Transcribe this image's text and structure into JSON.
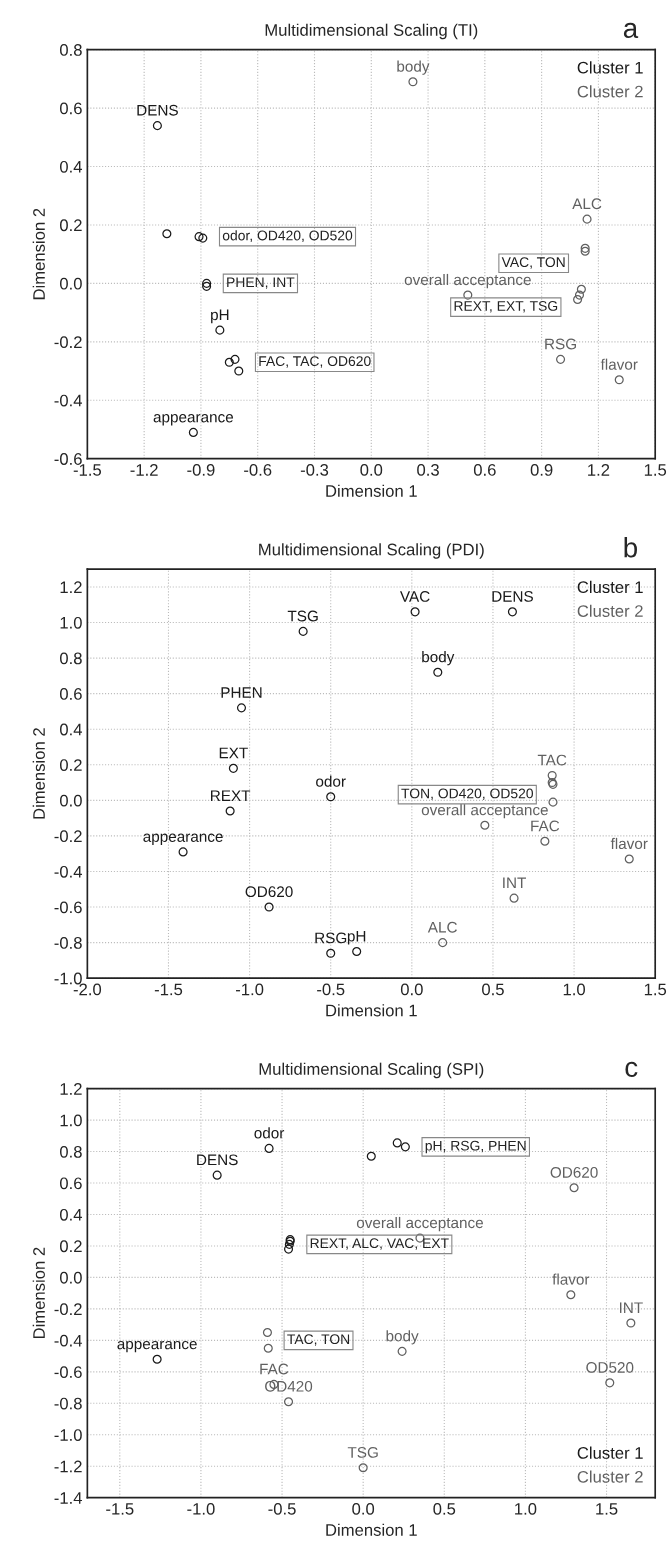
{
  "chart_data": [
    {
      "type": "scatter",
      "title": "Multidimensional Scaling (TI)",
      "xlabel": "Dimension 1",
      "ylabel": "Dimension 2",
      "xlim": [
        -1.5,
        1.5
      ],
      "ylim": [
        -0.6,
        0.8
      ],
      "xticks": [
        -1.5,
        -1.2,
        -0.9,
        -0.6,
        -0.3,
        {
          "value": 0,
          "label": "0.0"
        },
        0.3,
        0.6,
        0.9,
        1.2,
        1.5
      ],
      "yticks": [
        -0.6,
        -0.4,
        -0.2,
        {
          "value": 0,
          "label": "0.0"
        },
        0.2,
        0.4,
        0.6,
        0.8
      ],
      "grid": true,
      "marker": "circle",
      "legend": "top right",
      "series": [
        {
          "name": "Cluster 1",
          "color": "#1a1a1a",
          "x": [
            -1.13,
            -1.08,
            -0.91,
            -0.89,
            -0.87,
            -0.87,
            -0.8,
            -0.75,
            -0.72,
            -0.7,
            -0.94
          ],
          "values": [
            0.54,
            0.17,
            0.16,
            0.155,
            0.0,
            -0.01,
            -0.16,
            -0.27,
            -0.26,
            -0.3,
            -0.51
          ],
          "value_labels": [
            "DENS",
            null,
            null,
            null,
            null,
            null,
            "pH",
            null,
            null,
            null,
            "appearance"
          ]
        },
        {
          "name": "Cluster 2",
          "color": "#606060",
          "x": [
            0.22,
            1.14,
            1.13,
            1.13,
            1.09,
            1.1,
            1.11,
            0.51,
            1.0,
            1.31
          ],
          "values": [
            0.69,
            0.22,
            0.11,
            0.12,
            -0.055,
            -0.04,
            -0.02,
            -0.04,
            -0.26,
            -0.33
          ],
          "value_labels": [
            "body",
            "ALC",
            null,
            null,
            null,
            null,
            null,
            "overall acceptance",
            "RSG",
            "flavor"
          ]
        }
      ],
      "annotations": [
        "a",
        {
          "text": "odor, OD420, OD520",
          "x": -0.89,
          "y": 0.16
        },
        {
          "text": "PHEN, INT",
          "x": -0.87,
          "y": 0.0
        },
        {
          "text": "FAC, TAC, OD620",
          "x": -0.7,
          "y": -0.27
        },
        {
          "text": "VAC, TON",
          "x": 1.13,
          "y": 0.11
        },
        {
          "text": "REXT, EXT, TSG",
          "x": 1.09,
          "y": -0.04
        }
      ]
    },
    {
      "type": "scatter",
      "title": "Multidimensional Scaling (PDI)",
      "xlabel": "Dimension 1",
      "ylabel": "Dimension 2",
      "xlim": [
        -2.0,
        1.5
      ],
      "ylim": [
        -1.0,
        1.3
      ],
      "xticks": [
        {
          "value": -2,
          "label": "-2.0"
        },
        -1.5,
        {
          "value": -1,
          "label": "-1.0"
        },
        -0.5,
        {
          "value": 0,
          "label": "0.0"
        },
        0.5,
        {
          "value": 1,
          "label": "1.0"
        },
        1.5
      ],
      "yticks": [
        {
          "value": -1,
          "label": "-1.0"
        },
        -0.8,
        -0.6,
        -0.4,
        -0.2,
        {
          "value": 0,
          "label": "0.0"
        },
        0.2,
        0.4,
        0.6,
        0.8,
        {
          "value": 1,
          "label": "1.0"
        },
        1.2
      ],
      "grid": true,
      "marker": "circle",
      "legend": "top right",
      "series": [
        {
          "name": "Cluster 1",
          "color": "#1a1a1a",
          "x": [
            -0.67,
            -1.05,
            -1.1,
            -1.12,
            -1.41,
            -0.5,
            -0.88,
            -0.5,
            -0.34,
            0.02,
            0.62,
            0.16
          ],
          "values": [
            0.95,
            0.52,
            0.18,
            -0.06,
            -0.29,
            0.02,
            -0.6,
            -0.86,
            -0.85,
            1.06,
            1.06,
            0.72
          ],
          "value_labels": [
            "TSG",
            "PHEN",
            "EXT",
            "REXT",
            "appearance",
            "odor",
            "OD620",
            "RSG",
            "pH",
            "VAC",
            "DENS",
            "body"
          ]
        },
        {
          "name": "Cluster 2",
          "color": "#606060",
          "x": [
            0.865,
            0.87,
            0.865,
            0.87,
            0.45,
            0.82,
            1.34,
            0.63,
            0.19
          ],
          "values": [
            0.14,
            0.09,
            0.1,
            -0.01,
            -0.14,
            -0.23,
            -0.33,
            -0.55,
            -0.8
          ],
          "value_labels": [
            "TAC",
            null,
            null,
            null,
            "overall acceptance",
            "FAC",
            "flavor",
            "INT",
            "ALC"
          ]
        }
      ],
      "annotations": [
        "b",
        {
          "text": "TON, OD420, OD520",
          "x": 0.87,
          "y": 0.1
        }
      ]
    },
    {
      "type": "scatter",
      "title": "Multidimensional Scaling (SPI)",
      "xlabel": "Dimension 1",
      "ylabel": "Dimension 2",
      "xlim": [
        -1.7,
        1.8
      ],
      "ylim": [
        -1.4,
        1.2
      ],
      "xticks": [
        -1.5,
        {
          "value": -1,
          "label": "-1.0"
        },
        -0.5,
        {
          "value": 0,
          "label": "0.0"
        },
        0.5,
        {
          "value": 1,
          "label": "1.0"
        },
        1.5
      ],
      "yticks": [
        -1.4,
        -1.2,
        {
          "value": -1,
          "label": "-1.0"
        },
        -0.8,
        -0.6,
        -0.4,
        -0.2,
        {
          "value": 0,
          "label": "0.0"
        },
        0.2,
        0.4,
        0.6,
        0.8,
        {
          "value": 1,
          "label": "1.0"
        },
        1.2
      ],
      "grid": true,
      "marker": "circle",
      "legend": "bottom right",
      "series": [
        {
          "name": "Cluster 1",
          "color": "#1a1a1a",
          "x": [
            -0.58,
            -0.9,
            0.05,
            0.21,
            0.26,
            -0.45,
            -0.45,
            -0.455,
            -0.46,
            -1.27
          ],
          "values": [
            0.82,
            0.65,
            0.77,
            0.855,
            0.83,
            0.23,
            0.24,
            0.21,
            0.18,
            -0.52
          ],
          "value_labels": [
            "odor",
            "DENS",
            null,
            null,
            null,
            null,
            null,
            null,
            null,
            "appearance"
          ]
        },
        {
          "name": "Cluster 2",
          "color": "#606060",
          "x": [
            0.35,
            1.3,
            1.28,
            1.65,
            1.52,
            0.24,
            0.0,
            -0.59,
            -0.585,
            -0.55,
            -0.46
          ],
          "values": [
            0.25,
            0.57,
            -0.11,
            -0.29,
            -0.67,
            -0.47,
            -1.21,
            -0.35,
            -0.45,
            -0.68,
            -0.79
          ],
          "value_labels": [
            "overall acceptance",
            "OD620",
            "flavor",
            "INT",
            "OD520",
            "body",
            "TSG",
            null,
            null,
            "FAC",
            "OD420"
          ]
        }
      ],
      "annotations": [
        "c",
        {
          "text": "pH, RSG, PHEN",
          "x": 0.26,
          "y": 0.83
        },
        {
          "text": "REXT, ALC, VAC, EXT",
          "x": -0.45,
          "y": 0.21
        },
        {
          "text": "TAC, TON",
          "x": -0.59,
          "y": -0.4
        }
      ]
    }
  ]
}
